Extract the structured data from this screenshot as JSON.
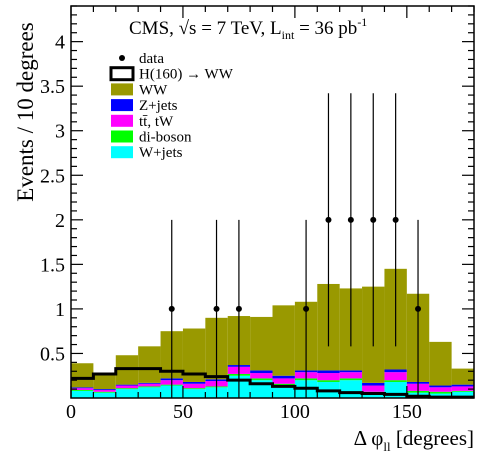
{
  "chart_data": {
    "type": "bar",
    "stacked": true,
    "title": "CMS, √s = 7 TeV, L",
    "title_sub": "int",
    "title_tail": " = 36 pb",
    "title_sup": "-1",
    "xlabel_main": "Δ φ",
    "xlabel_sub": "ll",
    "xlabel_tail": " [degrees]",
    "ylabel": "Events / 10 degrees",
    "xlim": [
      0,
      180
    ],
    "ylim": [
      0,
      4.4
    ],
    "xticks": [
      0,
      50,
      100,
      150
    ],
    "yticks": [
      0.5,
      1,
      1.5,
      2,
      2.5,
      3,
      3.5,
      4
    ],
    "bin_edges": [
      0,
      10,
      20,
      30,
      40,
      50,
      60,
      70,
      80,
      90,
      100,
      110,
      120,
      130,
      140,
      150,
      160,
      170,
      180
    ],
    "legend_position": "top-left",
    "legend": [
      {
        "key": "data",
        "label": "data",
        "marker": "point"
      },
      {
        "key": "higgs",
        "label": "H(160) → WW",
        "marker": "line"
      },
      {
        "key": "ww",
        "label": "WW",
        "marker": "fill"
      },
      {
        "key": "zjets",
        "label": "Z+jets",
        "marker": "fill"
      },
      {
        "key": "ttbar",
        "label": "tt̄, tW",
        "marker": "fill"
      },
      {
        "key": "diboson",
        "label": "di-boson",
        "marker": "fill"
      },
      {
        "key": "wjets",
        "label": "W+jets",
        "marker": "fill"
      }
    ],
    "stack_order": [
      "wjets",
      "diboson",
      "ttbar",
      "zjets",
      "ww"
    ],
    "series": [
      {
        "key": "wjets",
        "color": "#00ffff",
        "values": [
          0.08,
          0.06,
          0.1,
          0.12,
          0.14,
          0.1,
          0.12,
          0.25,
          0.2,
          0.14,
          0.2,
          0.18,
          0.2,
          0.05,
          0.18,
          0.06,
          0.05,
          0.07
        ]
      },
      {
        "key": "diboson",
        "color": "#00ff00",
        "values": [
          0.01,
          0.01,
          0.01,
          0.01,
          0.01,
          0.01,
          0.01,
          0.02,
          0.02,
          0.02,
          0.02,
          0.02,
          0.02,
          0.02,
          0.02,
          0.02,
          0.02,
          0.01
        ]
      },
      {
        "key": "ttbar",
        "color": "#ff00ff",
        "values": [
          0.02,
          0.02,
          0.03,
          0.03,
          0.05,
          0.05,
          0.06,
          0.08,
          0.06,
          0.06,
          0.07,
          0.08,
          0.07,
          0.07,
          0.09,
          0.08,
          0.05,
          0.05
        ]
      },
      {
        "key": "zjets",
        "color": "#0000ff",
        "values": [
          0.01,
          0.01,
          0.01,
          0.01,
          0.02,
          0.02,
          0.02,
          0.02,
          0.03,
          0.03,
          0.02,
          0.03,
          0.02,
          0.03,
          0.03,
          0.02,
          0.02,
          0.02
        ]
      },
      {
        "key": "ww",
        "color": "#999900",
        "values": [
          0.27,
          0.17,
          0.33,
          0.41,
          0.53,
          0.6,
          0.69,
          0.55,
          0.6,
          0.79,
          0.77,
          0.97,
          0.92,
          1.08,
          1.13,
          0.99,
          0.49,
          0.18
        ]
      }
    ],
    "higgs_values": [
      0.22,
      0.27,
      0.33,
      0.33,
      0.3,
      0.27,
      0.24,
      0.2,
      0.16,
      0.13,
      0.11,
      0.08,
      0.06,
      0.05,
      0.04,
      0.02,
      0.01,
      0.01
    ],
    "data_points": [
      {
        "x": 45,
        "y": 1,
        "err": [
          1,
          1
        ]
      },
      {
        "x": 65,
        "y": 1,
        "err": [
          1,
          1
        ]
      },
      {
        "x": 75,
        "y": 1,
        "err": [
          1,
          1
        ]
      },
      {
        "x": 105,
        "y": 1,
        "err": [
          1,
          1
        ]
      },
      {
        "x": 115,
        "y": 2,
        "err": [
          1.42,
          1.42
        ]
      },
      {
        "x": 125,
        "y": 2,
        "err": [
          1.42,
          1.42
        ]
      },
      {
        "x": 135,
        "y": 2,
        "err": [
          1.42,
          1.42
        ]
      },
      {
        "x": 145,
        "y": 2,
        "err": [
          1.42,
          1.42
        ]
      },
      {
        "x": 155,
        "y": 1,
        "err": [
          1,
          1
        ]
      }
    ]
  }
}
